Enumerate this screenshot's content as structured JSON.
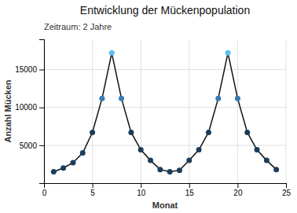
{
  "chart_data": {
    "type": "line",
    "title": "Entwicklung der Mückenpopulation",
    "subtitle": "Zeitraum: 2 Jahre",
    "xlabel": "Monat",
    "ylabel": "Anzahl Mücken",
    "x": [
      1,
      2,
      3,
      4,
      5,
      6,
      7,
      8,
      9,
      10,
      11,
      12,
      13,
      14,
      15,
      16,
      17,
      18,
      19,
      20,
      21,
      22,
      23,
      24
    ],
    "values": [
      1500,
      2000,
      2700,
      4000,
      6700,
      11200,
      17200,
      11200,
      6700,
      4400,
      3000,
      1800,
      1500,
      1700,
      3000,
      4400,
      6700,
      11200,
      17200,
      11200,
      6700,
      4400,
      3000,
      1800
    ],
    "color": "#111111",
    "colors": [
      "#1a3d5c",
      "#1a3d5c",
      "#1a3d5c",
      "#1a3d5c",
      "#1a3d5c",
      "#3a7ab5",
      "#5bbfef",
      "#3a7ab5",
      "#1a3d5c",
      "#1a3d5c",
      "#1a3d5c",
      "#1a3d5c",
      "#1a3d5c",
      "#1a3d5c",
      "#1a3d5c",
      "#1a3d5c",
      "#1a3d5c",
      "#3a7ab5",
      "#5bbfef",
      "#3a7ab5",
      "#1a3d5c",
      "#1a3d5c",
      "#1a3d5c",
      "#1a3d5c"
    ],
    "marker": "circle",
    "xlim": [
      0,
      25
    ],
    "ylim": [
      0,
      19000
    ],
    "xticks": [
      0,
      5,
      10,
      15,
      20,
      25
    ],
    "yticks": [
      5000,
      10000,
      15000
    ],
    "grid": true
  }
}
